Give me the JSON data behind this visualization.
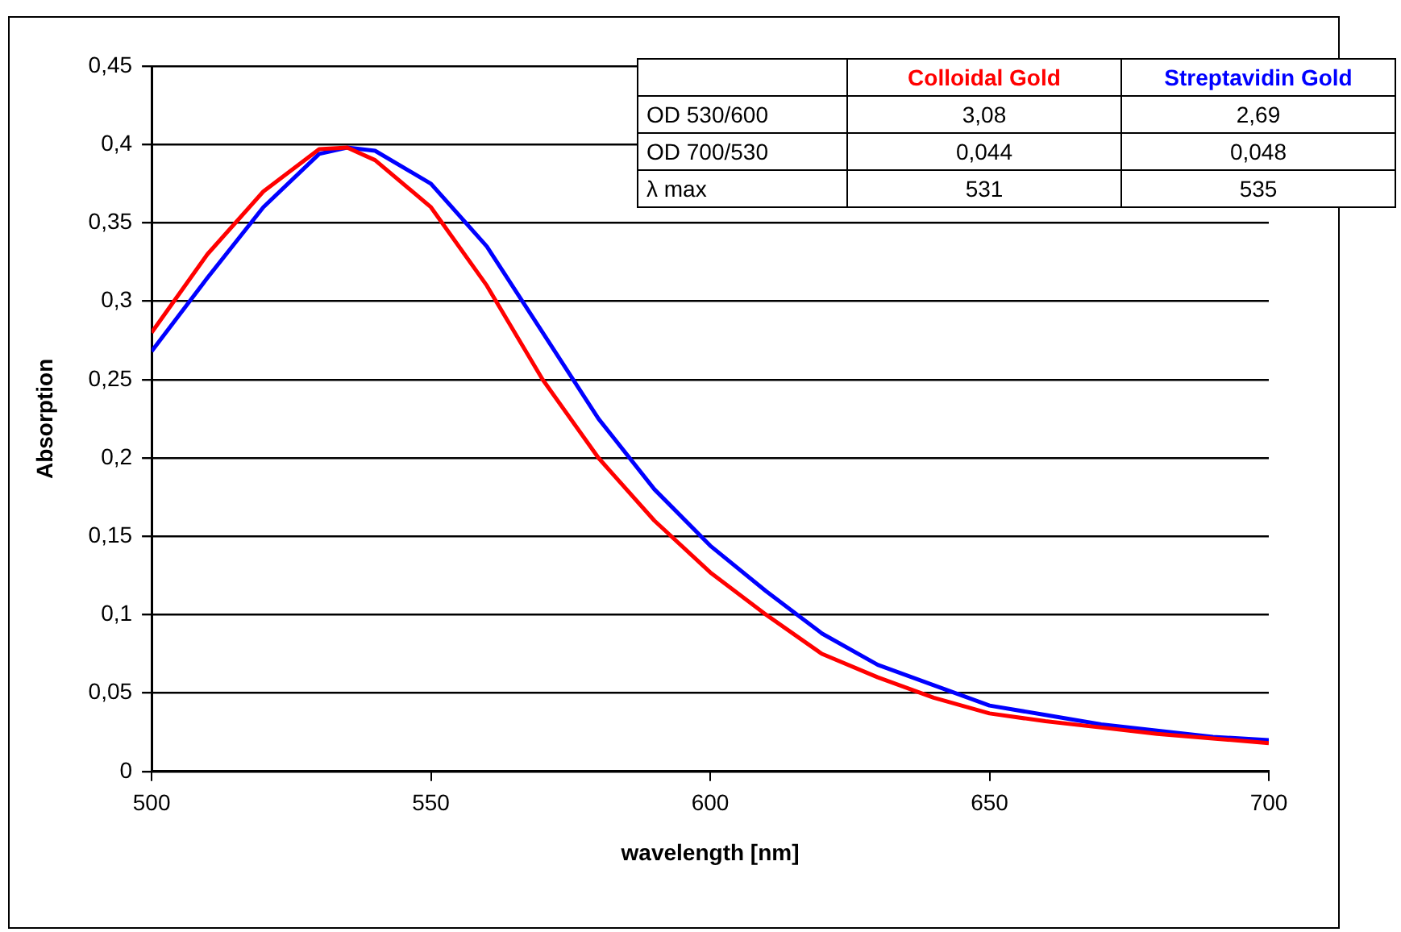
{
  "chart_data": {
    "type": "line",
    "xlabel": "wavelength [nm]",
    "ylabel": "Absorption",
    "x": [
      500,
      510,
      520,
      530,
      535,
      540,
      550,
      560,
      570,
      580,
      590,
      600,
      610,
      620,
      630,
      640,
      650,
      660,
      670,
      680,
      690,
      700
    ],
    "series": [
      {
        "name": "Colloidal Gold",
        "color": "#ff0000",
        "values": [
          0.28,
          0.33,
          0.37,
          0.397,
          0.398,
          0.39,
          0.36,
          0.31,
          0.25,
          0.2,
          0.16,
          0.127,
          0.1,
          0.075,
          0.06,
          0.047,
          0.037,
          0.032,
          0.028,
          0.024,
          0.021,
          0.018
        ]
      },
      {
        "name": "Streptavidin Gold",
        "color": "#0000ff",
        "values": [
          0.268,
          0.315,
          0.36,
          0.394,
          0.398,
          0.396,
          0.375,
          0.335,
          0.28,
          0.225,
          0.18,
          0.144,
          0.115,
          0.088,
          0.068,
          0.055,
          0.042,
          0.036,
          0.03,
          0.026,
          0.022,
          0.02
        ]
      }
    ],
    "xlim": [
      500,
      700
    ],
    "xticks": [
      500,
      550,
      600,
      650,
      700
    ],
    "ylim": [
      0,
      0.45
    ],
    "yticks": [
      0,
      {
        "value": 0.05,
        "label": "0,05"
      },
      {
        "value": 0.1,
        "label": "0,1"
      },
      {
        "value": 0.15,
        "label": "0,15"
      },
      {
        "value": 0.2,
        "label": "0,2"
      },
      {
        "value": 0.25,
        "label": "0,25"
      },
      {
        "value": 0.3,
        "label": "0,3"
      },
      {
        "value": 0.35,
        "label": "0,35"
      },
      {
        "value": 0.4,
        "label": "0,4"
      },
      {
        "value": 0.45,
        "label": "0,45"
      }
    ],
    "grid": "y",
    "legend": "top right",
    "marker": "none",
    "line_style": "solid",
    "annotations": [
      "OD 530/600",
      "3,08",
      "2,69",
      "OD 700/530",
      "0,044",
      "0,048",
      "λ max",
      "531",
      "535"
    ]
  }
}
